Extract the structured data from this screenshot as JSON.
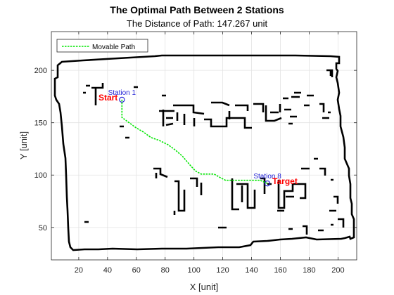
{
  "chart_data": {
    "type": "line",
    "title": "The Optimal Path Between 2 Stations",
    "subtitle": "The Distance of Path: 147.267 unit",
    "xlabel": "X [unit]",
    "ylabel": "Y [unit]",
    "xlim": [
      1,
      213
    ],
    "ylim": [
      19,
      237
    ],
    "xticks": [
      20,
      40,
      60,
      80,
      100,
      120,
      140,
      160,
      180,
      200
    ],
    "yticks": [
      50,
      100,
      150,
      200
    ],
    "grid": true,
    "legend": {
      "position": "top-left",
      "entries": [
        "Movable Path"
      ]
    },
    "colors": {
      "path": "#00e600",
      "station": "#1f1fd6",
      "label": "#ff0000",
      "walls": "#000000"
    },
    "series": [
      {
        "name": "Movable Path",
        "points": [
          [
            50,
            172
          ],
          [
            50,
            165
          ],
          [
            50,
            155
          ],
          [
            55,
            150
          ],
          [
            60,
            145
          ],
          [
            65,
            141
          ],
          [
            70,
            136
          ],
          [
            76,
            133
          ],
          [
            82,
            129
          ],
          [
            87,
            124
          ],
          [
            92,
            118
          ],
          [
            97,
            110
          ],
          [
            101,
            104
          ],
          [
            105,
            101
          ],
          [
            114,
            101
          ],
          [
            119,
            97
          ],
          [
            122,
            95
          ],
          [
            131,
            95
          ],
          [
            140,
            95
          ],
          [
            146,
            95
          ],
          [
            151,
            92
          ]
        ]
      }
    ],
    "stations": [
      {
        "name": "Station 1",
        "x": 50,
        "y": 172,
        "tag": "Start"
      },
      {
        "name": "Station 8",
        "x": 151,
        "y": 92,
        "tag": "Target"
      }
    ]
  }
}
